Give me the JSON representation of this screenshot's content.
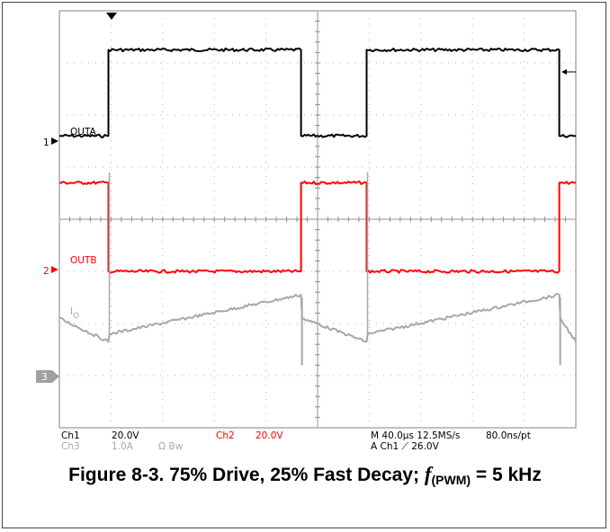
{
  "chart_data": {
    "type": "line",
    "title": "",
    "xlabel": "",
    "ylabel": "",
    "grid": true,
    "x_divisions": 10,
    "y_divisions": 8,
    "time_per_div_us": 40,
    "xlim_div": [
      0,
      10
    ],
    "ylim_div": [
      0,
      8
    ],
    "series": [
      {
        "name": "OUTA",
        "channel": "1",
        "color": "#000000",
        "x_div": [
          0,
          0.95,
          0.95,
          4.68,
          4.68,
          5.95,
          5.95,
          9.68,
          9.68,
          10
        ],
        "y_div": [
          5.6,
          5.6,
          7.25,
          7.25,
          5.6,
          5.6,
          7.25,
          7.25,
          5.6,
          5.6
        ]
      },
      {
        "name": "OUTB",
        "channel": "2",
        "color": "#ff0000",
        "x_div": [
          0,
          0.95,
          0.95,
          4.68,
          4.68,
          5.95,
          5.95,
          9.68,
          9.68,
          10
        ],
        "y_div": [
          4.7,
          4.7,
          3.0,
          3.0,
          4.7,
          4.7,
          3.0,
          3.0,
          4.7,
          4.7
        ]
      },
      {
        "name": "IO",
        "channel": "3",
        "color": "#a8a8a8",
        "x_div": [
          0,
          0.95,
          0.97,
          4.68,
          4.7,
          5.95,
          5.97,
          9.68,
          9.7,
          10
        ],
        "y_div": [
          2.1,
          1.65,
          1.8,
          2.55,
          2.1,
          1.65,
          1.8,
          2.55,
          2.1,
          1.65
        ]
      }
    ],
    "channel_labels": {
      "outa": "OUTA",
      "outb": "OUTB",
      "io_main": "I",
      "io_sub": "O"
    },
    "markers": {
      "ch1": "1",
      "ch2": "2",
      "ch3": "3"
    },
    "readout": {
      "ch1_name": "Ch1",
      "ch1_scale": "20.0V",
      "ch2_name": "Ch2",
      "ch2_scale": "20.0V",
      "ch3_name": "Ch3",
      "ch3_scale": "1.0A",
      "ch3_units": "Ω  Bw",
      "timebase": "M 40.0µs 12.5MS/s",
      "record": "80.0ns/pt",
      "trigger": "A  Ch1  ⟋  26.0V"
    }
  },
  "caption": {
    "main": "Figure 8-3. 75% Drive, 25% Fast Decay; ",
    "f_symbol": "f",
    "f_subscript": "(PWM)",
    "value": " = 5 kHz"
  }
}
